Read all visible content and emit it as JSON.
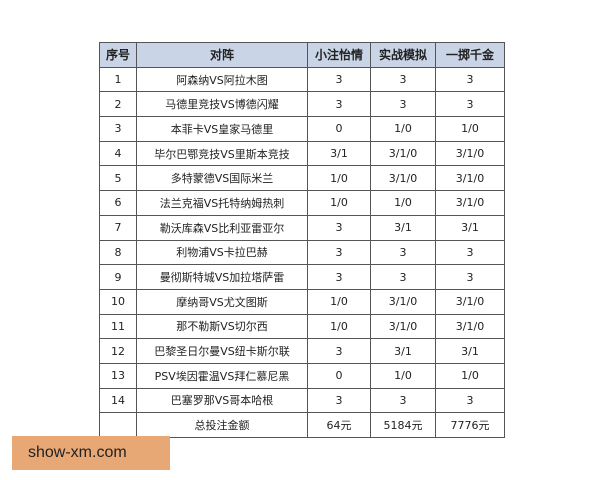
{
  "headers": [
    "序号",
    "对阵",
    "小注怡情",
    "实战模拟",
    "一掷千金"
  ],
  "rows": [
    [
      "1",
      "阿森纳VS阿拉木图",
      "3",
      "3",
      "3"
    ],
    [
      "2",
      "马德里竞技VS博德闪耀",
      "3",
      "3",
      "3"
    ],
    [
      "3",
      "本菲卡VS皇家马德里",
      "0",
      "1/0",
      "1/0"
    ],
    [
      "4",
      "毕尔巴鄂竞技VS里斯本竞技",
      "3/1",
      "3/1/0",
      "3/1/0"
    ],
    [
      "5",
      "多特蒙德VS国际米兰",
      "1/0",
      "3/1/0",
      "3/1/0"
    ],
    [
      "6",
      "法兰克福VS托特纳姆热刺",
      "1/0",
      "1/0",
      "3/1/0"
    ],
    [
      "7",
      "勒沃库森VS比利亚雷亚尔",
      "3",
      "3/1",
      "3/1"
    ],
    [
      "8",
      "利物浦VS卡拉巴赫",
      "3",
      "3",
      "3"
    ],
    [
      "9",
      "曼彻斯特城VS加拉塔萨雷",
      "3",
      "3",
      "3"
    ],
    [
      "10",
      "摩纳哥VS尤文图斯",
      "1/0",
      "3/1/0",
      "3/1/0"
    ],
    [
      "11",
      "那不勒斯VS切尔西",
      "1/0",
      "3/1/0",
      "3/1/0"
    ],
    [
      "12",
      "巴黎圣日尔曼VS纽卡斯尔联",
      "3",
      "3/1",
      "3/1"
    ],
    [
      "13",
      "PSV埃因霍温VS拜仁慕尼黑",
      "0",
      "1/0",
      "1/0"
    ],
    [
      "14",
      "巴塞罗那VS哥本哈根",
      "3",
      "3",
      "3"
    ]
  ],
  "total": {
    "label": "总投注金额",
    "values": [
      "64元",
      "5184元",
      "7776元"
    ]
  },
  "watermark": "show-xm.com"
}
